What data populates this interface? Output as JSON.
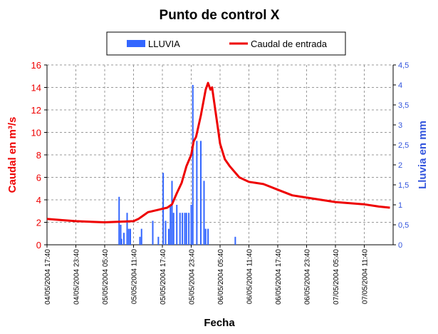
{
  "chart_data": {
    "type": "combo",
    "title": "Punto de control X",
    "xlabel": "Fecha",
    "ylabel": "Caudal en m³/s",
    "y2label": "Lluvia en mm",
    "xlim": [
      "04/05/2004 17:40",
      "07/05/2004 17:40"
    ],
    "xticks": [
      "04/05/2004 17:40",
      "04/05/2004 23:40",
      "05/05/2004 05:40",
      "05/05/2004 11:40",
      "05/05/2004 17:40",
      "05/05/2004 23:40",
      "06/05/2004 05:40",
      "06/05/2004 11:40",
      "06/05/2004 17:40",
      "06/05/2004 23:40",
      "07/05/2004 05:40",
      "07/05/2004 11:40"
    ],
    "ylim": [
      0,
      16
    ],
    "yticks": [
      0,
      2,
      4,
      6,
      8,
      10,
      12,
      14,
      16
    ],
    "y2lim": [
      0,
      4.5
    ],
    "y2ticks": [
      0,
      {
        "value": 0.5,
        "label": "0,5"
      },
      1,
      {
        "value": 1.5,
        "label": "1,5"
      },
      2,
      {
        "value": 2.5,
        "label": "2,5"
      },
      3,
      {
        "value": 3.5,
        "label": "3,5"
      },
      4,
      {
        "value": 4.5,
        "label": "4,5"
      }
    ],
    "grid": true,
    "series": [
      {
        "name": "LLUVIA",
        "type": "bar",
        "axis": "y2",
        "color": "#3366ff",
        "x": [
          "05/05/2004 08:40",
          "05/05/2004 09:00",
          "05/05/2004 09:10",
          "05/05/2004 09:40",
          "05/05/2004 10:20",
          "05/05/2004 10:40",
          "05/05/2004 11:00",
          "05/05/2004 13:00",
          "05/05/2004 13:20",
          "05/05/2004 15:40",
          "05/05/2004 16:50",
          "05/05/2004 17:50",
          "05/05/2004 18:20",
          "05/05/2004 19:00",
          "05/05/2004 19:20",
          "05/05/2004 19:40",
          "05/05/2004 20:00",
          "05/05/2004 20:40",
          "05/05/2004 21:20",
          "05/05/2004 21:50",
          "05/05/2004 22:20",
          "05/05/2004 22:40",
          "05/05/2004 23:10",
          "05/05/2004 23:40",
          "06/05/2004 00:00",
          "06/05/2004 00:50",
          "06/05/2004 01:40",
          "06/05/2004 02:20",
          "06/05/2004 02:40",
          "06/05/2004 03:10",
          "06/05/2004 08:50"
        ],
        "values": [
          1.2,
          0.5,
          0.15,
          0.3,
          0.8,
          0.4,
          0.4,
          0.2,
          0.4,
          0.6,
          0.2,
          1.8,
          0.6,
          0.4,
          1.0,
          1.6,
          0.8,
          1.0,
          0.8,
          0.8,
          0.8,
          0.8,
          0.8,
          1.0,
          4.0,
          2.6,
          2.6,
          1.6,
          0.4,
          0.4,
          0.2
        ]
      },
      {
        "name": "Caudal de entrada",
        "type": "line",
        "color": "#ee0000",
        "x": [
          "04/05/2004 17:40",
          "04/05/2004 20:40",
          "04/05/2004 23:40",
          "05/05/2004 05:40",
          "05/05/2004 11:40",
          "05/05/2004 12:40",
          "05/05/2004 13:40",
          "05/05/2004 14:40",
          "05/05/2004 16:40",
          "05/05/2004 17:40",
          "05/05/2004 18:40",
          "05/05/2004 19:40",
          "05/05/2004 20:40",
          "05/05/2004 21:40",
          "05/05/2004 22:40",
          "05/05/2004 23:40",
          "06/05/2004 00:10",
          "06/05/2004 00:40",
          "06/05/2004 01:40",
          "06/05/2004 02:40",
          "06/05/2004 03:10",
          "06/05/2004 03:40",
          "06/05/2004 04:00",
          "06/05/2004 04:40",
          "06/05/2004 05:20",
          "06/05/2004 05:40",
          "06/05/2004 06:40",
          "06/05/2004 07:40",
          "06/05/2004 09:40",
          "06/05/2004 11:40",
          "06/05/2004 14:40",
          "06/05/2004 17:40",
          "06/05/2004 20:40",
          "06/05/2004 23:40",
          "07/05/2004 02:40",
          "07/05/2004 05:40",
          "07/05/2004 11:40",
          "07/05/2004 14:40",
          "07/05/2004 17:00"
        ],
        "values": [
          2.3,
          2.2,
          2.1,
          2.0,
          2.1,
          2.3,
          2.6,
          2.9,
          3.1,
          3.2,
          3.3,
          3.6,
          4.6,
          5.5,
          7.0,
          8.0,
          9.2,
          9.6,
          11.5,
          13.8,
          14.4,
          13.8,
          14.0,
          12.0,
          10.0,
          9.0,
          7.6,
          7.0,
          6.0,
          5.6,
          5.4,
          4.9,
          4.4,
          4.2,
          4.0,
          3.8,
          3.6,
          3.4,
          3.3
        ]
      }
    ]
  }
}
